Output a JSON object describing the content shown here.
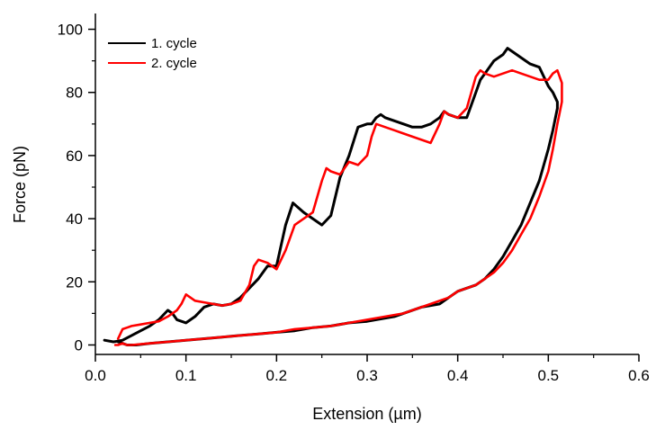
{
  "chart_data": {
    "type": "line",
    "xlabel": "Extension (µm)",
    "ylabel": "Force (pN)",
    "xlim": [
      0.0,
      0.6
    ],
    "ylim": [
      -3,
      105
    ],
    "x_ticks": [
      "0.0",
      "0.1",
      "0.2",
      "0.3",
      "0.4",
      "0.5",
      "0.6"
    ],
    "y_ticks": [
      "0",
      "20",
      "40",
      "60",
      "80",
      "100"
    ],
    "x_tick_values": [
      0.0,
      0.1,
      0.2,
      0.3,
      0.4,
      0.5,
      0.6
    ],
    "y_tick_values": [
      0,
      20,
      40,
      60,
      80,
      100
    ],
    "grid": false,
    "legend_position": "top-left",
    "series": [
      {
        "name": "1. cycle",
        "color": "#000000",
        "x": [
          0.01,
          0.02,
          0.03,
          0.04,
          0.05,
          0.06,
          0.07,
          0.08,
          0.085,
          0.09,
          0.1,
          0.11,
          0.12,
          0.13,
          0.14,
          0.15,
          0.16,
          0.17,
          0.18,
          0.19,
          0.2,
          0.21,
          0.218,
          0.222,
          0.23,
          0.24,
          0.25,
          0.26,
          0.27,
          0.28,
          0.29,
          0.3,
          0.305,
          0.31,
          0.315,
          0.32,
          0.33,
          0.34,
          0.35,
          0.36,
          0.37,
          0.38,
          0.385,
          0.39,
          0.4,
          0.41,
          0.42,
          0.425,
          0.43,
          0.44,
          0.45,
          0.455,
          0.46,
          0.47,
          0.48,
          0.49,
          0.495,
          0.5,
          0.505,
          0.51,
          0.51,
          0.505,
          0.5,
          0.49,
          0.48,
          0.47,
          0.46,
          0.45,
          0.44,
          0.43,
          0.42,
          0.41,
          0.4,
          0.39,
          0.38,
          0.37,
          0.36,
          0.35,
          0.34,
          0.33,
          0.32,
          0.3,
          0.28,
          0.26,
          0.24,
          0.22,
          0.2,
          0.18,
          0.16,
          0.14,
          0.12,
          0.1,
          0.08,
          0.06,
          0.045,
          0.035,
          0.03,
          0.025
        ],
        "y": [
          1.5,
          1,
          1.5,
          3,
          4.5,
          6,
          8,
          11,
          10,
          8,
          7,
          9,
          12,
          13,
          12.5,
          13,
          15,
          18,
          21,
          25,
          25,
          38,
          45,
          44,
          42,
          40,
          38,
          41,
          53,
          60,
          69,
          70,
          70,
          72,
          73,
          72,
          71,
          70,
          69,
          69,
          70,
          72,
          74,
          73,
          72,
          72,
          80,
          84,
          86,
          90,
          92,
          94,
          93,
          91,
          89,
          88,
          85,
          82,
          80,
          77,
          75,
          68,
          62,
          52,
          45,
          38,
          33,
          28,
          24,
          21,
          19,
          18,
          17,
          15,
          13,
          12.5,
          12,
          11,
          10,
          9,
          8.5,
          7.5,
          7,
          6,
          5.5,
          4.5,
          4,
          3.5,
          3,
          2.5,
          2,
          1.5,
          1,
          0.5,
          0,
          0,
          0.5,
          1
        ]
      },
      {
        "name": "2. cycle",
        "color": "#ff0000",
        "x": [
          0.025,
          0.03,
          0.035,
          0.04,
          0.05,
          0.06,
          0.07,
          0.08,
          0.09,
          0.095,
          0.1,
          0.105,
          0.11,
          0.12,
          0.13,
          0.14,
          0.15,
          0.16,
          0.17,
          0.175,
          0.18,
          0.19,
          0.2,
          0.21,
          0.22,
          0.23,
          0.24,
          0.25,
          0.255,
          0.26,
          0.27,
          0.28,
          0.29,
          0.3,
          0.305,
          0.31,
          0.32,
          0.33,
          0.34,
          0.35,
          0.36,
          0.37,
          0.38,
          0.385,
          0.39,
          0.4,
          0.41,
          0.42,
          0.425,
          0.43,
          0.44,
          0.45,
          0.46,
          0.47,
          0.48,
          0.49,
          0.5,
          0.505,
          0.51,
          0.515,
          0.515,
          0.51,
          0.505,
          0.5,
          0.49,
          0.48,
          0.47,
          0.46,
          0.45,
          0.44,
          0.43,
          0.42,
          0.41,
          0.4,
          0.39,
          0.38,
          0.37,
          0.36,
          0.35,
          0.34,
          0.32,
          0.3,
          0.28,
          0.26,
          0.24,
          0.22,
          0.2,
          0.18,
          0.16,
          0.14,
          0.12,
          0.1,
          0.08,
          0.06,
          0.04,
          0.035,
          0.03,
          0.025,
          0.022
        ],
        "y": [
          2,
          5,
          5.5,
          6,
          6.5,
          7,
          7.5,
          9,
          11,
          13,
          16,
          15,
          14,
          13.5,
          13,
          12.5,
          13,
          14,
          19,
          25,
          27,
          26,
          24,
          30,
          38,
          40,
          42,
          52,
          56,
          55,
          54,
          58,
          57,
          60,
          66,
          70,
          69,
          68,
          67,
          66,
          65,
          64,
          70,
          74,
          73,
          72,
          75,
          85,
          87,
          86,
          85,
          86,
          87,
          86,
          85,
          84,
          84,
          86,
          87,
          83,
          77,
          70,
          62,
          55,
          47,
          40,
          35,
          30,
          26,
          23,
          21,
          19,
          18,
          17,
          15,
          14,
          13,
          12,
          11,
          10,
          9,
          8,
          7,
          6,
          5.5,
          5,
          4,
          3.5,
          3,
          2.5,
          2,
          1.5,
          1,
          0.5,
          0,
          0,
          0.5,
          0,
          0
        ]
      }
    ]
  }
}
